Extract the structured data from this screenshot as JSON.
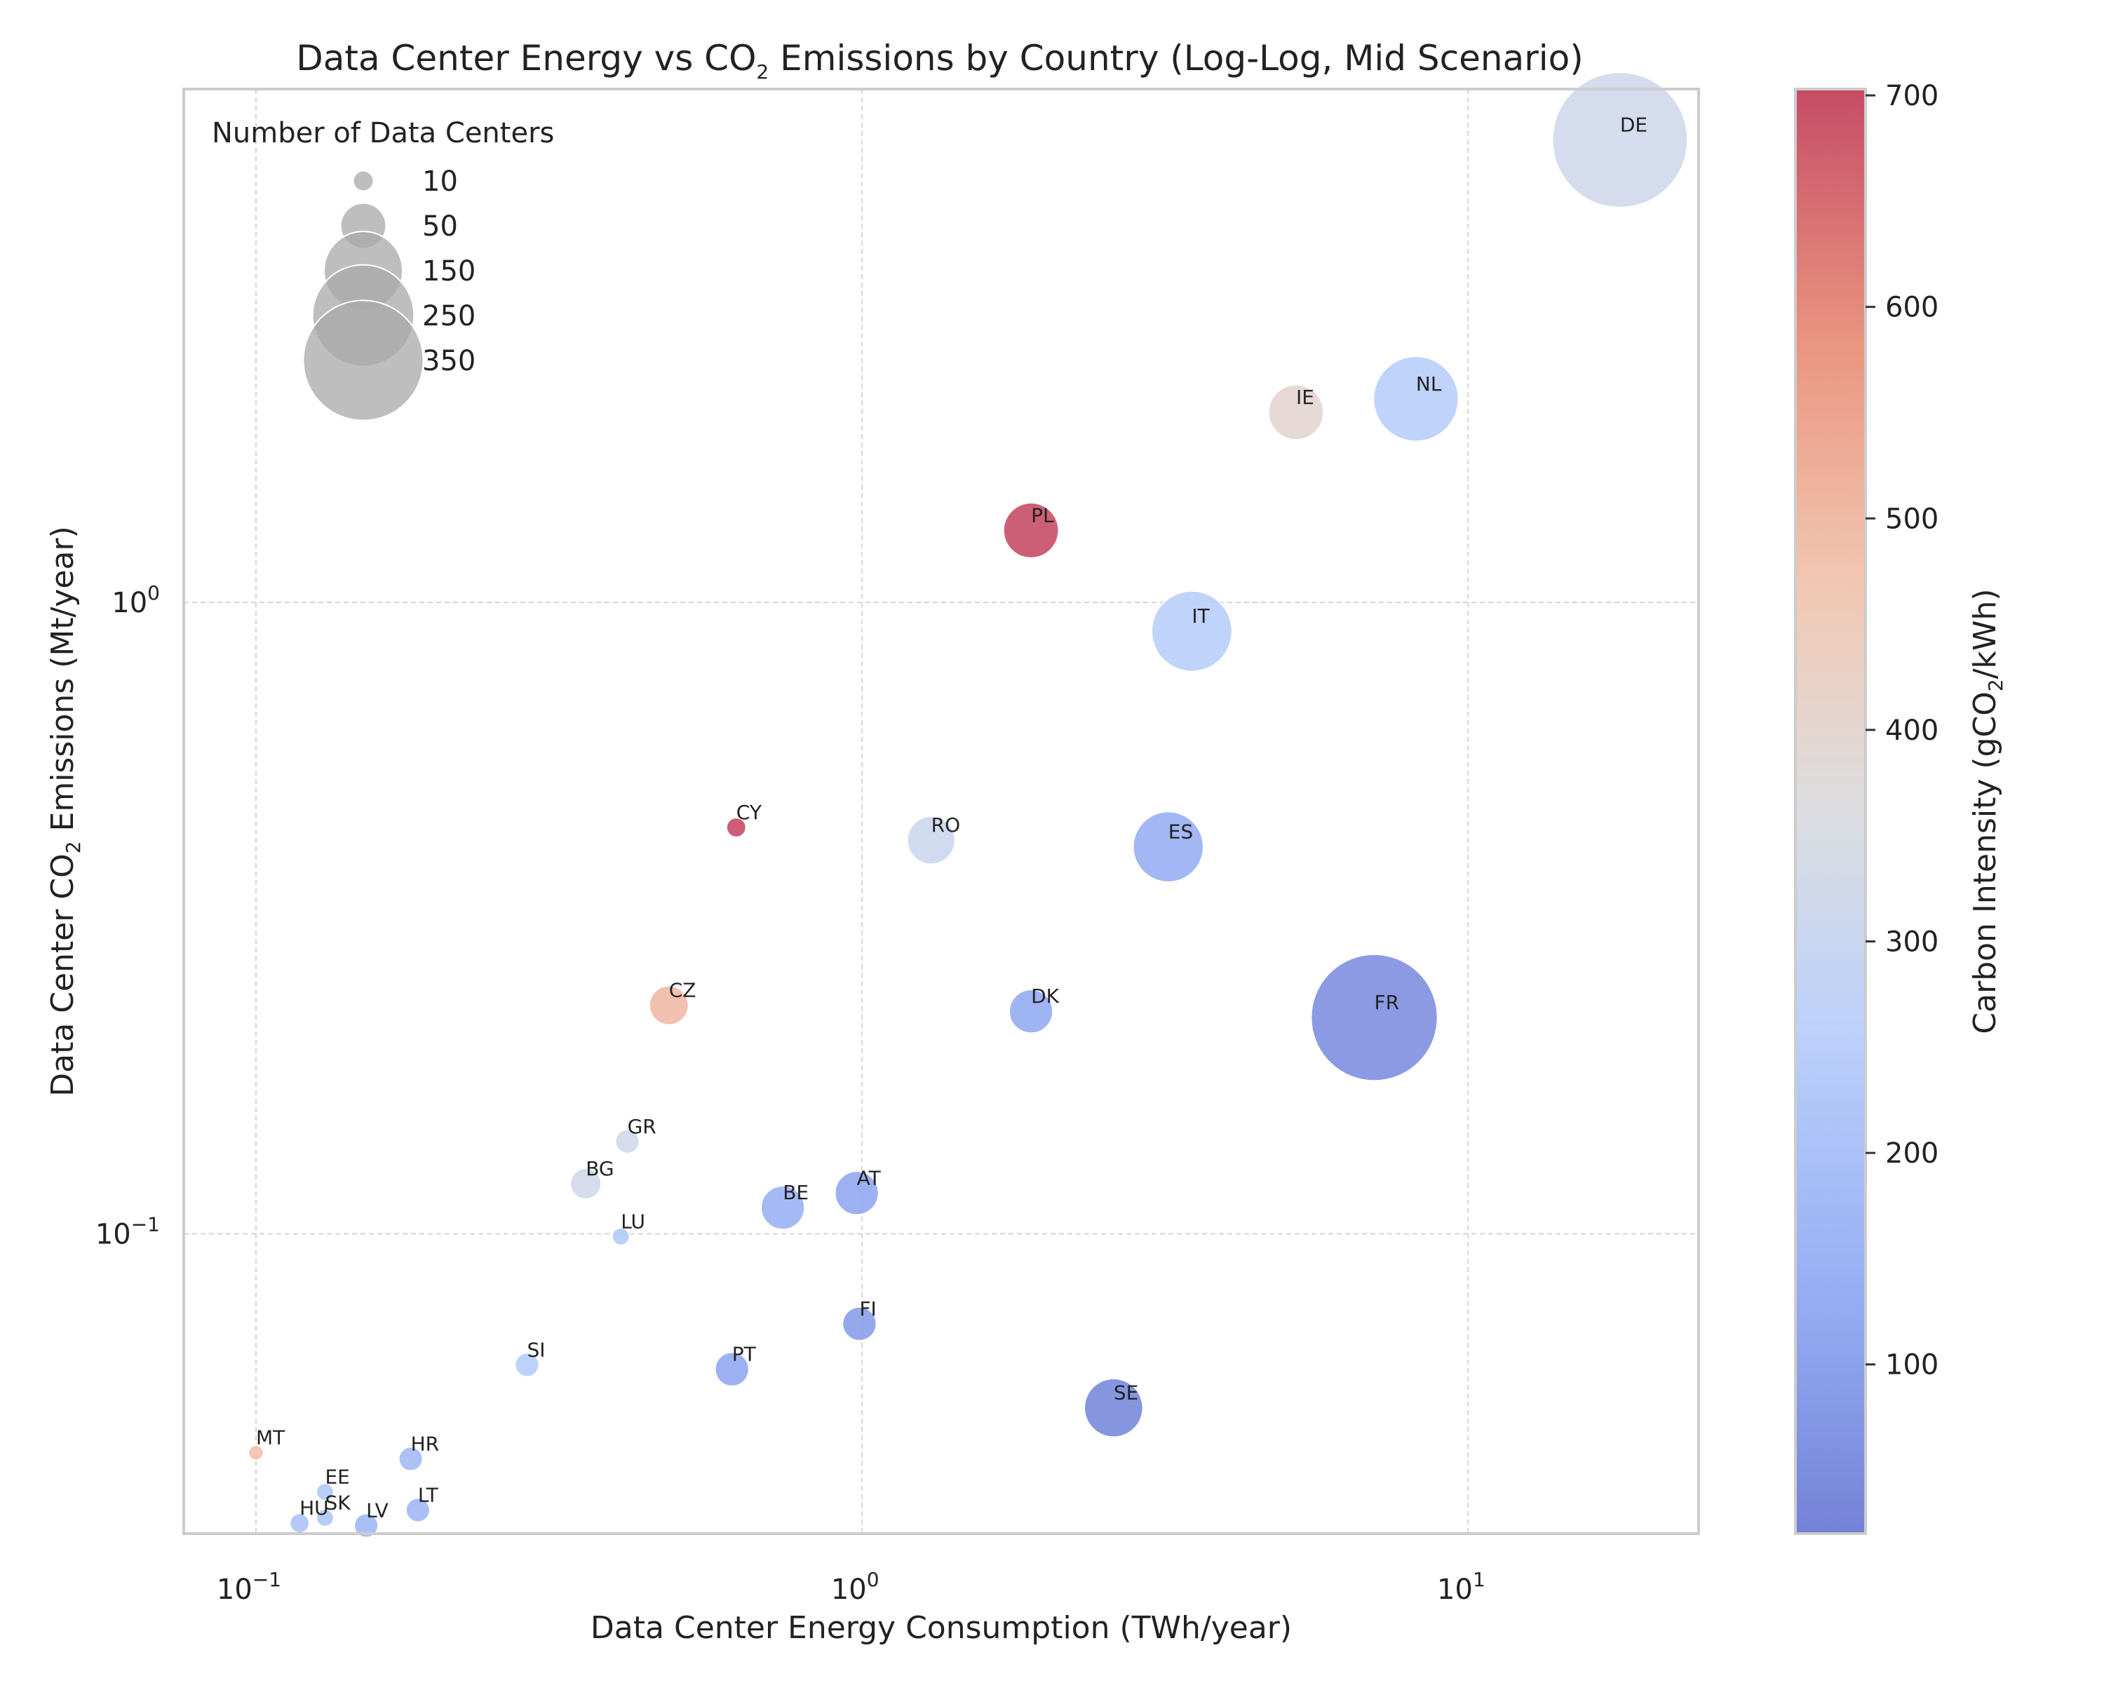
{
  "chart_data": {
    "type": "scatter",
    "title": {
      "pre": "Data Center Energy vs CO",
      "sub": "2",
      "post": " Emissions by Country (Log-Log, Mid Scenario)"
    },
    "xlabel": "Data Center Energy Consumption (TWh/year)",
    "ylabel": {
      "pre": "Data Center CO",
      "sub": "2",
      "post": " Emissions (Mt/year)"
    },
    "x_scale": "log",
    "y_scale": "log",
    "xlim": [
      0.076,
      24
    ],
    "ylim": [
      0.0335,
      6.5
    ],
    "x_ticks": [
      {
        "value": 0.1,
        "base": "10",
        "exp": "−1"
      },
      {
        "value": 1,
        "base": "10",
        "exp": "0"
      },
      {
        "value": 10,
        "base": "10",
        "exp": "1"
      }
    ],
    "y_ticks": [
      {
        "value": 0.1,
        "base": "10",
        "exp": "−1"
      },
      {
        "value": 1,
        "base": "10",
        "exp": "0"
      }
    ],
    "grid": true,
    "colorbar": {
      "label": {
        "pre": "Carbon Intensity (gCO",
        "sub": "2",
        "post": "/kWh)"
      },
      "min": 20,
      "max": 703,
      "colormap": "coolwarm",
      "ticks": [
        "100",
        "200",
        "300",
        "400",
        "500",
        "600",
        "700"
      ]
    },
    "size_legend": {
      "title": "Number of Data Centers",
      "placement": "top-left",
      "entries": [
        "10",
        "50",
        "150",
        "250",
        "350"
      ]
    },
    "points": [
      {
        "label": "DE",
        "x": 17.8,
        "y": 5.4,
        "count": 480,
        "intensity": 320
      },
      {
        "label": "NL",
        "x": 8.2,
        "y": 2.1,
        "count": 190,
        "intensity": 250
      },
      {
        "label": "IE",
        "x": 5.2,
        "y": 2.0,
        "count": 80,
        "intensity": 400
      },
      {
        "label": "PL",
        "x": 1.9,
        "y": 1.3,
        "count": 80,
        "intensity": 700
      },
      {
        "label": "IT",
        "x": 3.5,
        "y": 0.9,
        "count": 170,
        "intensity": 250
      },
      {
        "label": "CY",
        "x": 0.62,
        "y": 0.44,
        "count": 10,
        "intensity": 700
      },
      {
        "label": "RO",
        "x": 1.3,
        "y": 0.42,
        "count": 60,
        "intensity": 310
      },
      {
        "label": "ES",
        "x": 3.2,
        "y": 0.41,
        "count": 130,
        "intensity": 140
      },
      {
        "label": "CZ",
        "x": 0.48,
        "y": 0.23,
        "count": 40,
        "intensity": 500
      },
      {
        "label": "DK",
        "x": 1.9,
        "y": 0.225,
        "count": 50,
        "intensity": 130
      },
      {
        "label": "FR",
        "x": 7.0,
        "y": 0.22,
        "count": 420,
        "intensity": 55
      },
      {
        "label": "GR",
        "x": 0.41,
        "y": 0.14,
        "count": 15,
        "intensity": 320
      },
      {
        "label": "BG",
        "x": 0.35,
        "y": 0.12,
        "count": 25,
        "intensity": 320
      },
      {
        "label": "BE",
        "x": 0.74,
        "y": 0.11,
        "count": 50,
        "intensity": 150
      },
      {
        "label": "AT",
        "x": 0.98,
        "y": 0.116,
        "count": 50,
        "intensity": 120
      },
      {
        "label": "LU",
        "x": 0.4,
        "y": 0.099,
        "count": 8,
        "intensity": 230
      },
      {
        "label": "FI",
        "x": 0.99,
        "y": 0.072,
        "count": 30,
        "intensity": 95
      },
      {
        "label": "SI",
        "x": 0.28,
        "y": 0.062,
        "count": 15,
        "intensity": 240
      },
      {
        "label": "PT",
        "x": 0.61,
        "y": 0.061,
        "count": 30,
        "intensity": 120
      },
      {
        "label": "SE",
        "x": 2.6,
        "y": 0.053,
        "count": 90,
        "intensity": 40
      },
      {
        "label": "MT",
        "x": 0.1,
        "y": 0.045,
        "count": 6,
        "intensity": 480
      },
      {
        "label": "HR",
        "x": 0.18,
        "y": 0.044,
        "count": 15,
        "intensity": 180
      },
      {
        "label": "EE",
        "x": 0.13,
        "y": 0.039,
        "count": 8,
        "intensity": 230
      },
      {
        "label": "LT",
        "x": 0.185,
        "y": 0.0365,
        "count": 15,
        "intensity": 170
      },
      {
        "label": "HU",
        "x": 0.118,
        "y": 0.0348,
        "count": 10,
        "intensity": 210
      },
      {
        "label": "SK",
        "x": 0.13,
        "y": 0.0355,
        "count": 8,
        "intensity": 220
      },
      {
        "label": "LV",
        "x": 0.152,
        "y": 0.0345,
        "count": 15,
        "intensity": 170
      }
    ]
  }
}
